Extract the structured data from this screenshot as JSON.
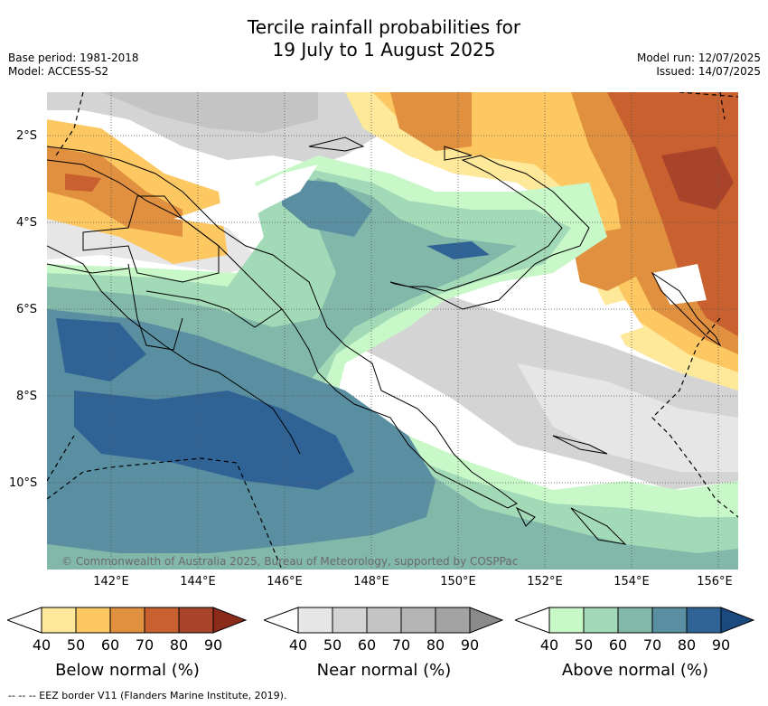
{
  "title_line1": "Tercile rainfall probabilities for",
  "title_line2": "19 July to 1 August 2025",
  "base_period": "Base period: 1981-2018",
  "model": "Model: ACCESS-S2",
  "model_run": "Model run: 12/07/2025",
  "issued": "Issued: 14/07/2025",
  "lat_labels": [
    "2°S",
    "4°S",
    "6°S",
    "8°S",
    "10°S"
  ],
  "lon_labels": [
    "142°E",
    "144°E",
    "146°E",
    "148°E",
    "150°E",
    "152°E",
    "154°E",
    "156°E"
  ],
  "copyright": "© Commonwealth of Australia 2025, Bureau of Meteorology, supported by COSPPac",
  "colorbars": [
    {
      "label": "Below normal (%)",
      "ticks": [
        "40",
        "50",
        "60",
        "70",
        "80",
        "90"
      ],
      "colors": [
        "#ffffff",
        "#fee89a",
        "#fdc861",
        "#e0903e",
        "#c8602f",
        "#a9432a",
        "#8b2b1a"
      ]
    },
    {
      "label": "Near normal (%)",
      "ticks": [
        "40",
        "50",
        "60",
        "70",
        "80",
        "90"
      ],
      "colors": [
        "#ffffff",
        "#e6e6e6",
        "#d4d4d4",
        "#c4c4c4",
        "#b4b4b4",
        "#a3a3a3",
        "#8a8a8a"
      ]
    },
    {
      "label": "Above normal (%)",
      "ticks": [
        "40",
        "50",
        "60",
        "70",
        "80",
        "90"
      ],
      "colors": [
        "#ffffff",
        "#c8f8c8",
        "#a2d9b6",
        "#82b8aa",
        "#5a8fa1",
        "#2f6396",
        "#1b4a7e"
      ]
    }
  ],
  "footnote": "-- -- -- EEZ border V11 (Flanders Marine Institute, 2019)."
}
